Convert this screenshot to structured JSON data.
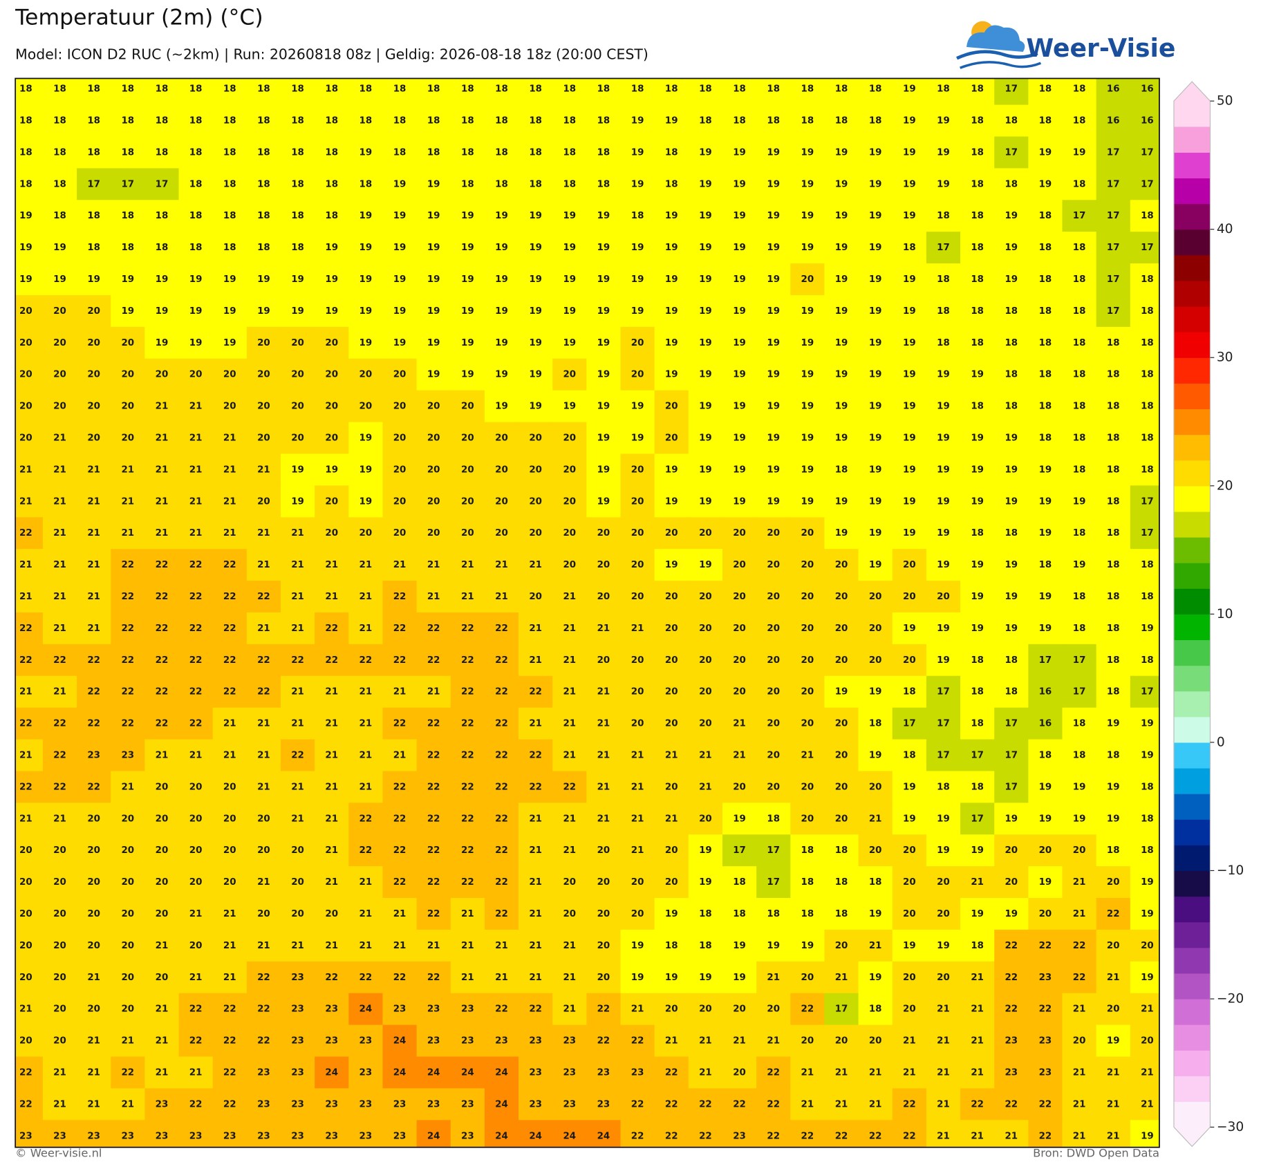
{
  "header": {
    "title": "Temperatuur (2m) (°C)",
    "subtitle": "Model: ICON D2 RUC (~2km)  |  Run: 20260818 08z  |  Geldig: 2026-08-18 18z (20:00 CEST)",
    "logo": "Weer-Visie"
  },
  "map": {
    "rows": [
      [
        18,
        18,
        18,
        18,
        18,
        18,
        18,
        18,
        18,
        18,
        18,
        18,
        18,
        18,
        18,
        18,
        18,
        18,
        18,
        18,
        18,
        18,
        18,
        18,
        18,
        18,
        19,
        18,
        18,
        17,
        18,
        18,
        16,
        16
      ],
      [
        18,
        18,
        18,
        18,
        18,
        18,
        18,
        18,
        18,
        18,
        18,
        18,
        18,
        18,
        18,
        18,
        18,
        18,
        19,
        19,
        18,
        18,
        18,
        18,
        18,
        18,
        19,
        19,
        18,
        18,
        18,
        18,
        16,
        16
      ],
      [
        18,
        18,
        18,
        18,
        18,
        18,
        18,
        18,
        18,
        18,
        19,
        18,
        18,
        18,
        18,
        18,
        18,
        18,
        19,
        18,
        19,
        19,
        19,
        19,
        19,
        19,
        19,
        19,
        18,
        17,
        19,
        19,
        17,
        17
      ],
      [
        18,
        18,
        17,
        17,
        17,
        18,
        18,
        18,
        18,
        18,
        18,
        19,
        19,
        18,
        18,
        18,
        18,
        18,
        19,
        18,
        19,
        19,
        19,
        19,
        19,
        19,
        19,
        19,
        18,
        18,
        19,
        18,
        17,
        17
      ],
      [
        19,
        18,
        18,
        18,
        18,
        18,
        18,
        18,
        18,
        18,
        19,
        19,
        19,
        19,
        19,
        19,
        19,
        19,
        18,
        19,
        19,
        19,
        19,
        19,
        19,
        19,
        19,
        18,
        18,
        19,
        18,
        17,
        17,
        18
      ],
      [
        19,
        19,
        18,
        18,
        18,
        18,
        18,
        18,
        18,
        19,
        19,
        19,
        19,
        19,
        19,
        19,
        19,
        19,
        19,
        19,
        19,
        19,
        19,
        19,
        19,
        19,
        18,
        17,
        18,
        19,
        18,
        18,
        17,
        17
      ],
      [
        19,
        19,
        19,
        19,
        19,
        19,
        19,
        19,
        19,
        19,
        19,
        19,
        19,
        19,
        19,
        19,
        19,
        19,
        19,
        19,
        19,
        19,
        19,
        20,
        19,
        19,
        19,
        18,
        18,
        19,
        18,
        18,
        17,
        18
      ],
      [
        20,
        20,
        20,
        19,
        19,
        19,
        19,
        19,
        19,
        19,
        19,
        19,
        19,
        19,
        19,
        19,
        19,
        19,
        19,
        19,
        19,
        19,
        19,
        19,
        19,
        19,
        19,
        18,
        18,
        18,
        18,
        18,
        17,
        18
      ],
      [
        20,
        20,
        20,
        20,
        19,
        19,
        19,
        20,
        20,
        20,
        19,
        19,
        19,
        19,
        19,
        19,
        19,
        19,
        20,
        19,
        19,
        19,
        19,
        19,
        19,
        19,
        19,
        18,
        18,
        18,
        18,
        18,
        18,
        18
      ],
      [
        20,
        20,
        20,
        20,
        20,
        20,
        20,
        20,
        20,
        20,
        20,
        20,
        19,
        19,
        19,
        19,
        20,
        19,
        20,
        19,
        19,
        19,
        19,
        19,
        19,
        19,
        19,
        19,
        19,
        18,
        18,
        18,
        18,
        18
      ],
      [
        20,
        20,
        20,
        20,
        21,
        21,
        20,
        20,
        20,
        20,
        20,
        20,
        20,
        20,
        19,
        19,
        19,
        19,
        19,
        20,
        19,
        19,
        19,
        19,
        19,
        19,
        19,
        19,
        18,
        18,
        18,
        18,
        18,
        18
      ],
      [
        20,
        21,
        20,
        20,
        21,
        21,
        21,
        20,
        20,
        20,
        19,
        20,
        20,
        20,
        20,
        20,
        20,
        19,
        19,
        20,
        19,
        19,
        19,
        19,
        19,
        19,
        19,
        19,
        19,
        19,
        18,
        18,
        18,
        18
      ],
      [
        21,
        21,
        21,
        21,
        21,
        21,
        21,
        21,
        19,
        19,
        19,
        20,
        20,
        20,
        20,
        20,
        20,
        19,
        20,
        19,
        19,
        19,
        19,
        19,
        18,
        19,
        19,
        19,
        19,
        19,
        19,
        18,
        18,
        18
      ],
      [
        21,
        21,
        21,
        21,
        21,
        21,
        21,
        20,
        19,
        20,
        19,
        20,
        20,
        20,
        20,
        20,
        20,
        19,
        20,
        19,
        19,
        19,
        19,
        19,
        19,
        19,
        19,
        19,
        19,
        19,
        19,
        19,
        18,
        17
      ],
      [
        22,
        21,
        21,
        21,
        21,
        21,
        21,
        21,
        21,
        20,
        20,
        20,
        20,
        20,
        20,
        20,
        20,
        20,
        20,
        20,
        20,
        20,
        20,
        20,
        19,
        19,
        19,
        19,
        18,
        18,
        19,
        18,
        18,
        17
      ],
      [
        21,
        21,
        21,
        22,
        22,
        22,
        22,
        21,
        21,
        21,
        21,
        21,
        21,
        21,
        21,
        21,
        20,
        20,
        20,
        19,
        19,
        20,
        20,
        20,
        20,
        19,
        20,
        19,
        19,
        19,
        18,
        19,
        18,
        18
      ],
      [
        21,
        21,
        21,
        22,
        22,
        22,
        22,
        22,
        21,
        21,
        21,
        22,
        21,
        21,
        21,
        20,
        21,
        20,
        20,
        20,
        20,
        20,
        20,
        20,
        20,
        20,
        20,
        20,
        19,
        19,
        19,
        18,
        18,
        18
      ],
      [
        22,
        21,
        21,
        22,
        22,
        22,
        22,
        21,
        21,
        22,
        21,
        22,
        22,
        22,
        22,
        21,
        21,
        21,
        21,
        20,
        20,
        20,
        20,
        20,
        20,
        20,
        19,
        19,
        19,
        19,
        19,
        18,
        18,
        19
      ],
      [
        22,
        22,
        22,
        22,
        22,
        22,
        22,
        22,
        22,
        22,
        22,
        22,
        22,
        22,
        22,
        21,
        21,
        20,
        20,
        20,
        20,
        20,
        20,
        20,
        20,
        20,
        20,
        19,
        18,
        18,
        17,
        17,
        18,
        18
      ],
      [
        21,
        21,
        22,
        22,
        22,
        22,
        22,
        22,
        21,
        21,
        21,
        21,
        21,
        22,
        22,
        22,
        21,
        21,
        20,
        20,
        20,
        20,
        20,
        20,
        19,
        19,
        18,
        17,
        18,
        18,
        16,
        17,
        18,
        17
      ],
      [
        22,
        22,
        22,
        22,
        22,
        22,
        21,
        21,
        21,
        21,
        21,
        22,
        22,
        22,
        22,
        21,
        21,
        21,
        20,
        20,
        20,
        21,
        20,
        20,
        20,
        18,
        17,
        17,
        18,
        17,
        16,
        18,
        19,
        19
      ],
      [
        21,
        22,
        23,
        23,
        21,
        21,
        21,
        21,
        22,
        21,
        21,
        21,
        22,
        22,
        22,
        22,
        21,
        21,
        21,
        21,
        21,
        21,
        20,
        21,
        20,
        19,
        18,
        17,
        17,
        17,
        18,
        18,
        18,
        19
      ],
      [
        22,
        22,
        22,
        21,
        20,
        20,
        20,
        21,
        21,
        21,
        21,
        22,
        22,
        22,
        22,
        22,
        22,
        21,
        21,
        20,
        21,
        20,
        20,
        20,
        20,
        20,
        19,
        18,
        18,
        17,
        19,
        19,
        19,
        18
      ],
      [
        21,
        21,
        20,
        20,
        20,
        20,
        20,
        20,
        21,
        21,
        22,
        22,
        22,
        22,
        22,
        21,
        21,
        21,
        21,
        21,
        20,
        19,
        18,
        20,
        20,
        21,
        19,
        19,
        17,
        19,
        19,
        19,
        19,
        18
      ],
      [
        20,
        20,
        20,
        20,
        20,
        20,
        20,
        20,
        20,
        21,
        22,
        22,
        22,
        22,
        22,
        21,
        21,
        20,
        21,
        20,
        19,
        17,
        17,
        18,
        18,
        20,
        20,
        19,
        19,
        20,
        20,
        20,
        18,
        18
      ],
      [
        20,
        20,
        20,
        20,
        20,
        20,
        20,
        21,
        20,
        21,
        21,
        22,
        22,
        22,
        22,
        21,
        20,
        20,
        20,
        20,
        19,
        18,
        17,
        18,
        18,
        18,
        20,
        20,
        21,
        20,
        19,
        21,
        20,
        19
      ],
      [
        20,
        20,
        20,
        20,
        20,
        21,
        21,
        20,
        20,
        20,
        21,
        21,
        22,
        21,
        22,
        21,
        20,
        20,
        20,
        19,
        18,
        18,
        18,
        18,
        18,
        19,
        20,
        20,
        19,
        19,
        20,
        21,
        22,
        19
      ],
      [
        20,
        20,
        20,
        20,
        21,
        20,
        21,
        21,
        21,
        21,
        21,
        21,
        21,
        21,
        21,
        21,
        21,
        20,
        19,
        18,
        18,
        19,
        19,
        19,
        20,
        21,
        19,
        19,
        18,
        22,
        22,
        22,
        20,
        20
      ],
      [
        20,
        20,
        21,
        20,
        20,
        21,
        21,
        22,
        23,
        22,
        22,
        22,
        22,
        21,
        21,
        21,
        21,
        20,
        19,
        19,
        19,
        19,
        21,
        20,
        21,
        19,
        20,
        20,
        21,
        22,
        23,
        22,
        21,
        19
      ],
      [
        21,
        20,
        20,
        20,
        21,
        22,
        22,
        22,
        23,
        23,
        24,
        23,
        23,
        23,
        22,
        22,
        21,
        22,
        21,
        20,
        20,
        20,
        20,
        22,
        17,
        18,
        20,
        21,
        21,
        22,
        22,
        21,
        20,
        21
      ],
      [
        20,
        20,
        21,
        21,
        21,
        22,
        22,
        22,
        23,
        23,
        23,
        24,
        23,
        23,
        23,
        23,
        23,
        22,
        22,
        21,
        21,
        21,
        21,
        20,
        20,
        20,
        21,
        21,
        21,
        23,
        23,
        20,
        19,
        20
      ],
      [
        22,
        21,
        21,
        22,
        21,
        21,
        22,
        23,
        23,
        24,
        23,
        24,
        24,
        24,
        24,
        23,
        23,
        23,
        23,
        22,
        21,
        20,
        22,
        21,
        21,
        21,
        21,
        21,
        21,
        23,
        23,
        21,
        21,
        21
      ],
      [
        22,
        21,
        21,
        21,
        23,
        22,
        22,
        23,
        23,
        23,
        23,
        23,
        23,
        23,
        24,
        23,
        23,
        23,
        22,
        22,
        22,
        22,
        22,
        21,
        21,
        21,
        22,
        21,
        22,
        22,
        22,
        21,
        21,
        21
      ],
      [
        23,
        23,
        23,
        23,
        23,
        23,
        23,
        23,
        23,
        23,
        23,
        23,
        24,
        23,
        24,
        24,
        24,
        24,
        22,
        22,
        22,
        23,
        22,
        22,
        22,
        22,
        22,
        21,
        21,
        21,
        22,
        21,
        21,
        19
      ]
    ]
  },
  "colorbar": {
    "lim": [
      -30,
      50
    ],
    "colors": [
      "#fdeefb",
      "#fbd0f4",
      "#f6aeec",
      "#e88ee2",
      "#d070d6",
      "#b254c4",
      "#9038b0",
      "#6e2098",
      "#4a0e80",
      "#180c48",
      "#001a70",
      "#0030a0",
      "#0060c0",
      "#00a0e0",
      "#38c8f8",
      "#ccfce8",
      "#a8f0b0",
      "#78dc78",
      "#48c848",
      "#00b400",
      "#008c00",
      "#30a800",
      "#6cbc00",
      "#c8dc00",
      "#ffff00",
      "#ffdc00",
      "#ffbc00",
      "#ff8c00",
      "#ff5a00",
      "#ff2800",
      "#f00000",
      "#d40000",
      "#b00000",
      "#8c0000",
      "#5a0030",
      "#880060",
      "#b800a8",
      "#e040d0",
      "#f8a0dc",
      "#ffd8f0"
    ],
    "ticks": [
      {
        "value": -30,
        "label": "−30"
      },
      {
        "value": -20,
        "label": "−20"
      },
      {
        "value": -10,
        "label": "−10"
      },
      0,
      10,
      20,
      30,
      40,
      50
    ]
  },
  "footer": {
    "left": "© Weer-visie.nl",
    "right": "Bron: DWD Open Data"
  }
}
